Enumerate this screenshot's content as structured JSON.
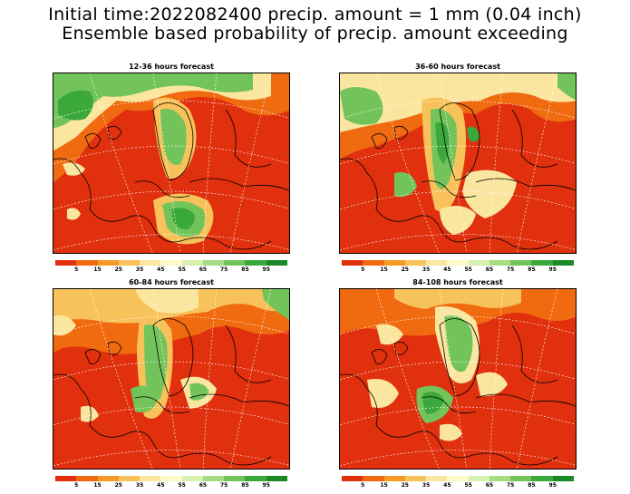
{
  "title_line1": "Initial time:2022082400 precip. amount = 1 mm (0.04 inch)",
  "title_line2": "Ensemble based probability of precip. amount exceeding",
  "panels": [
    {
      "title": "12-36 hours forecast"
    },
    {
      "title": "36-60 hours forecast"
    },
    {
      "title": "60-84 hours forecast"
    },
    {
      "title": "84-108 hours forecast"
    }
  ],
  "legend": {
    "colors": [
      "#e0300e",
      "#f06a10",
      "#f59a24",
      "#f8c25a",
      "#fbe6a0",
      "#fefac8",
      "#d6f0b0",
      "#a6dc84",
      "#72c45a",
      "#3aa83a",
      "#1a8a28"
    ],
    "labels": [
      "5",
      "15",
      "25",
      "35",
      "45",
      "55",
      "65",
      "75",
      "85",
      "95"
    ]
  },
  "colors": {
    "background": "#e0300e",
    "low_prob": "#f06a10",
    "mid_prob": "#fbe6a0",
    "high_prob": "#72c45a",
    "max_prob": "#3aa83a",
    "coastline": "#000000",
    "graticule": "#ffffff"
  }
}
